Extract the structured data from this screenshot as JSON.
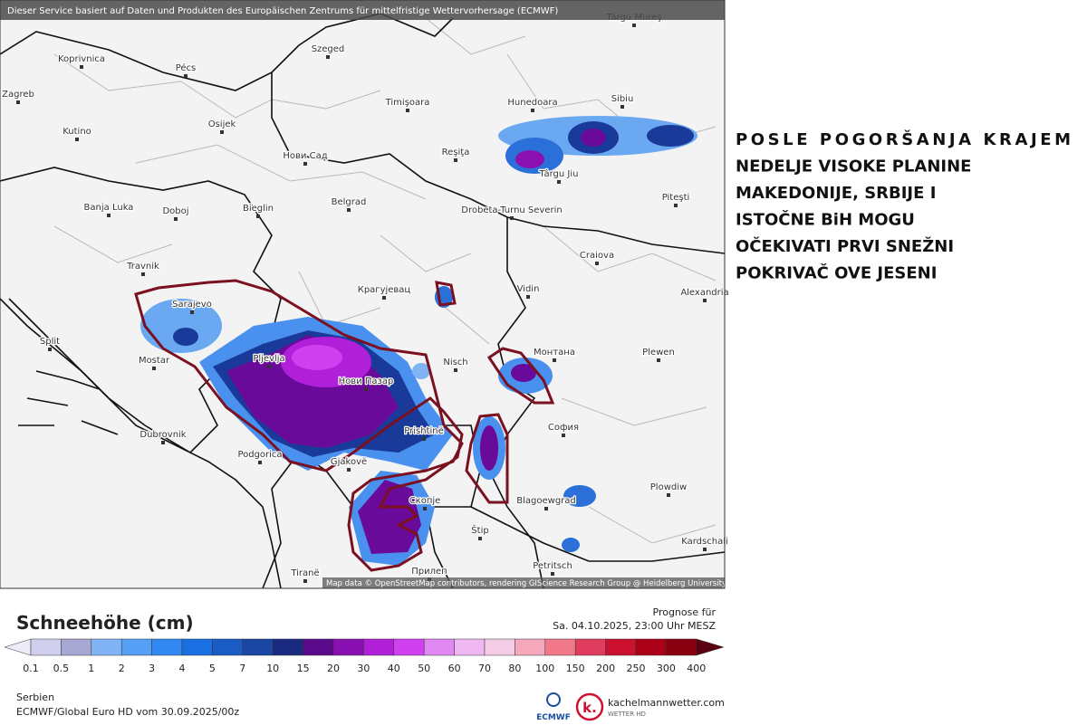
{
  "header": {
    "attribution": "Dieser Service basiert auf Daten und Produkten des Europäischen Zentrums für mittelfristige Wettervorhersage (ECMWF)"
  },
  "map": {
    "cities": [
      "Târgu Mureş",
      "Koprivnica",
      "Pécs",
      "Szeged",
      "Zagreb",
      "Osijek",
      "Timişoara",
      "Hunedoara",
      "Sibiu",
      "Kutino",
      "Нови Сад",
      "Reşiţa",
      "Târgu Jiu",
      "Piteşti",
      "Banja Luka",
      "Doboj",
      "Bieglin",
      "Belgrad",
      "Drobeta-Turnu Severin",
      "Craiova",
      "Travnik",
      "Sarajevo",
      "Крагујевац",
      "Vidin",
      "Alexandria",
      "Split",
      "Mostar",
      "Pljevlja",
      "Nisch",
      "Монтана",
      "Plewen",
      "Нови Пазар",
      "Prishtinë",
      "София",
      "Dubrovnik",
      "Podgorica",
      "Gjakovë",
      "Plowdiw",
      "Blagoewgrad",
      "Скопје",
      "Štip",
      "Tiranë",
      "Kardschali",
      "Petritsch",
      "Прилеп"
    ],
    "credit": "Map data © OpenStreetMap contributors, rendering GIScience Research Group @ Heidelberg University"
  },
  "legend": {
    "title": "Schneehöhe (cm)",
    "forecast_label": "Prognose für",
    "forecast_time": "Sa. 04.10.2025, 23:00 Uhr MESZ",
    "ticks": [
      0.1,
      0.5,
      1,
      2,
      3,
      4,
      5,
      7,
      10,
      15,
      20,
      30,
      40,
      50,
      60,
      70,
      80,
      100,
      150,
      200,
      250,
      300,
      400
    ],
    "under_color": "#ececf8",
    "over_color": "#5a0010",
    "colors": [
      "#d0d0ee",
      "#a8a8d4",
      "#80b4f4",
      "#55a0f4",
      "#3088f0",
      "#1a70e0",
      "#1a5cc4",
      "#1a46a4",
      "#1a2a80",
      "#5a0a8a",
      "#8810b0",
      "#b020d8",
      "#d040f0",
      "#e288f2",
      "#f0b8f2",
      "#f5cce6",
      "#f5a8bc",
      "#f07888",
      "#e03c60",
      "#cc1030",
      "#aa0018",
      "#880010"
    ],
    "region": "Serbien",
    "model": "ECMWF/Global Euro HD vom  30.09.2025/00z"
  },
  "logos": {
    "ecmwf": "ECMWF",
    "kachelmann": "kachelmannwetter.com",
    "kachelmann_sub": "WETTER HD",
    "k": "k."
  },
  "side_text": [
    "POSLE POGORŠANJA KRAJEM",
    "NEDELJE VISOKE PLANINE",
    "MAKEDONIJE, SRBIJE I",
    "ISTOČNE BiH MOGU",
    "OČEKIVATI PRVI SNEŽNI",
    "POKRIVAČ OVE JESENI"
  ]
}
